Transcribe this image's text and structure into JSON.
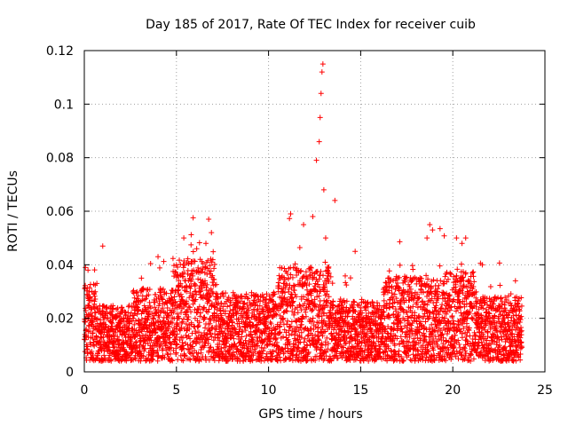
{
  "chart_data": {
    "type": "scatter",
    "title": "Day 185 of 2017, Rate Of TEC Index for receiver cuib",
    "xlabel": "GPS time / hours",
    "ylabel": "ROTI / TECUs",
    "xlim": [
      0,
      25
    ],
    "ylim": [
      0,
      0.12
    ],
    "xticks": [
      0,
      5,
      10,
      15,
      20,
      25
    ],
    "xtick_labels": [
      "0",
      "5",
      "10",
      "15",
      "20",
      "25"
    ],
    "yticks": [
      0,
      0.02,
      0.04,
      0.06,
      0.08,
      0.1,
      0.12
    ],
    "ytick_labels": [
      "0",
      "0.02",
      "0.04",
      "0.06",
      "0.08",
      "0.1",
      "0.12"
    ],
    "grid": true,
    "marker": "+",
    "color": "#ff0000",
    "data_range_hours": [
      0,
      23.75
    ],
    "series": [
      {
        "name": "ROTI",
        "x": [
          0.05,
          0.3,
          0.55,
          0.8,
          1.05,
          1.3,
          1.55,
          1.8,
          2.05,
          2.3,
          2.55,
          2.8,
          3.05,
          3.3,
          3.55,
          3.8,
          4.05,
          4.3,
          4.55,
          4.8,
          5.05,
          5.3,
          5.55,
          5.8,
          6.05,
          6.3,
          6.55,
          6.8,
          7.05,
          7.3,
          7.55,
          7.8,
          8.05,
          8.3,
          8.55,
          8.8,
          9.05,
          9.3,
          9.55,
          9.8,
          10.05,
          10.3,
          10.55,
          10.8,
          11.05,
          11.3,
          11.55,
          11.8,
          12.05,
          12.3,
          12.55,
          12.8,
          13.05,
          13.3,
          13.55,
          13.8,
          14.05,
          14.3,
          14.55,
          14.8,
          15.05,
          15.3,
          15.55,
          15.8,
          16.05,
          16.3,
          16.55,
          16.8,
          17.05,
          17.3,
          17.55,
          17.8,
          18.05,
          18.3,
          18.55,
          18.8,
          19.05,
          19.3,
          19.55,
          19.8,
          20.05,
          20.3,
          20.55,
          20.8,
          21.05,
          21.3,
          21.55,
          21.8,
          22.05,
          22.3,
          22.55,
          22.8,
          23.05,
          23.3,
          23.55,
          0.2,
          1.0,
          3.1,
          4.0,
          5.0,
          5.4,
          6.1,
          6.6,
          6.75,
          6.9,
          11.2,
          11.9,
          12.4,
          12.6,
          12.75,
          12.8,
          12.85,
          12.9,
          12.95,
          13.0,
          13.1,
          13.6,
          14.7,
          18.6,
          18.75,
          18.9,
          20.2,
          20.5,
          20.7,
          21.6,
          23.4
        ],
        "y": [
          0.012,
          0.028,
          0.02,
          0.015,
          0.018,
          0.013,
          0.011,
          0.016,
          0.014,
          0.019,
          0.022,
          0.026,
          0.018,
          0.02,
          0.015,
          0.021,
          0.017,
          0.019,
          0.016,
          0.014,
          0.024,
          0.028,
          0.03,
          0.032,
          0.027,
          0.03,
          0.034,
          0.028,
          0.022,
          0.02,
          0.019,
          0.017,
          0.016,
          0.018,
          0.015,
          0.02,
          0.014,
          0.017,
          0.019,
          0.018,
          0.016,
          0.021,
          0.023,
          0.02,
          0.025,
          0.026,
          0.024,
          0.028,
          0.027,
          0.03,
          0.033,
          0.036,
          0.03,
          0.022,
          0.019,
          0.018,
          0.017,
          0.015,
          0.016,
          0.014,
          0.013,
          0.017,
          0.015,
          0.019,
          0.016,
          0.02,
          0.021,
          0.018,
          0.022,
          0.02,
          0.019,
          0.021,
          0.026,
          0.032,
          0.036,
          0.03,
          0.024,
          0.019,
          0.02,
          0.025,
          0.027,
          0.03,
          0.032,
          0.028,
          0.024,
          0.022,
          0.018,
          0.019,
          0.016,
          0.017,
          0.015,
          0.02,
          0.022,
          0.019,
          0.014,
          0.038,
          0.047,
          0.035,
          0.043,
          0.04,
          0.05,
          0.046,
          0.048,
          0.057,
          0.052,
          0.059,
          0.055,
          0.058,
          0.079,
          0.086,
          0.095,
          0.104,
          0.112,
          0.115,
          0.068,
          0.05,
          0.064,
          0.045,
          0.05,
          0.055,
          0.053,
          0.05,
          0.048,
          0.05,
          0.04,
          0.034
        ]
      }
    ]
  }
}
